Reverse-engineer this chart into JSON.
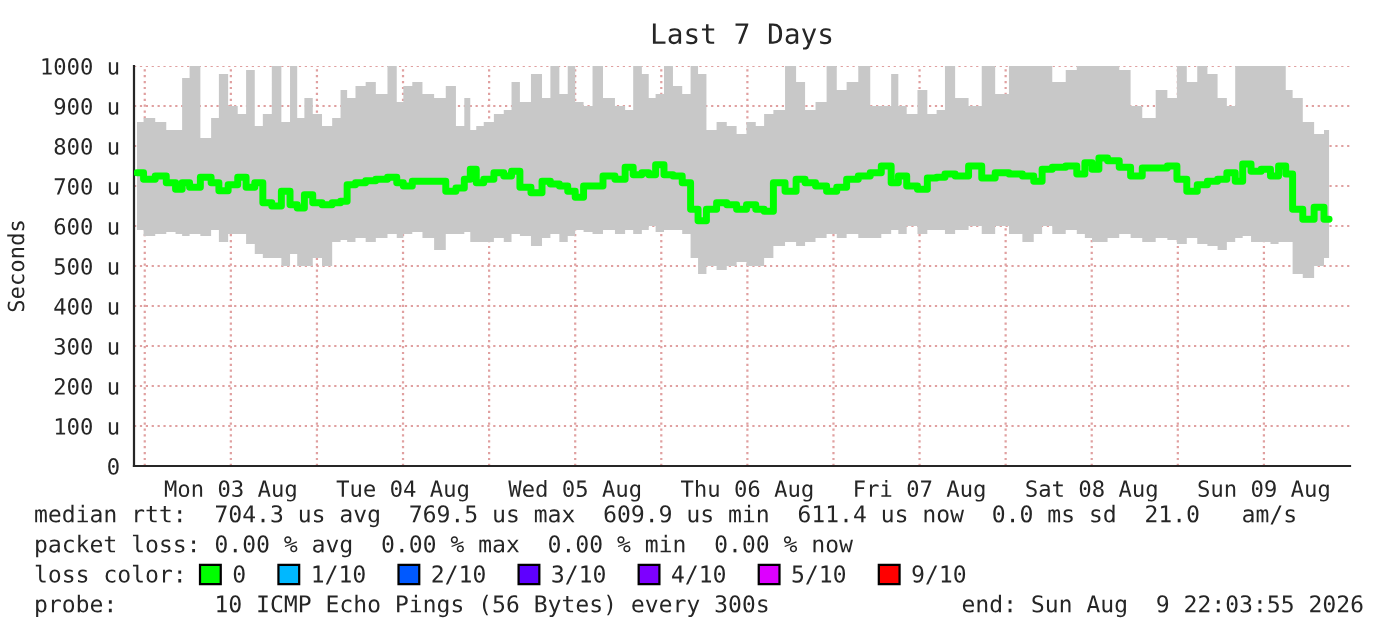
{
  "chart_data": {
    "type": "step",
    "title": "Last 7 Days",
    "ylabel": "Seconds",
    "legend_title": "loss color:",
    "x": [
      "2026-08-02T22:55",
      "2026-08-03T00:45",
      "2026-08-03T02:10",
      "2026-08-03T03:50",
      "2026-08-03T04:45",
      "2026-08-03T05:40",
      "2026-08-03T06:50",
      "2026-08-03T08:40",
      "2026-08-03T09:50",
      "2026-08-03T10:50",
      "2026-08-03T12:25",
      "2026-08-03T13:30",
      "2026-08-03T14:45",
      "2026-08-03T15:55",
      "2026-08-03T17:00",
      "2026-08-03T18:25",
      "2026-08-03T19:40",
      "2026-08-03T20:50",
      "2026-08-03T21:40",
      "2026-08-03T22:50",
      "2026-08-04T00:00",
      "2026-08-04T01:25",
      "2026-08-04T02:50",
      "2026-08-04T03:45",
      "2026-08-04T04:40",
      "2026-08-04T06:05",
      "2026-08-04T07:30",
      "2026-08-04T08:55",
      "2026-08-04T10:45",
      "2026-08-04T11:30",
      "2026-08-04T12:35",
      "2026-08-04T14:00",
      "2026-08-04T15:25",
      "2026-08-04T17:15",
      "2026-08-04T18:40",
      "2026-08-04T20:05",
      "2026-08-04T21:00",
      "2026-08-04T21:45",
      "2026-08-04T22:40",
      "2026-08-04T23:50",
      "2026-08-05T01:30",
      "2026-08-05T02:35",
      "2026-08-05T03:40",
      "2026-08-05T04:55",
      "2026-08-05T06:45",
      "2026-08-05T08:00",
      "2026-08-05T09:05",
      "2026-08-05T10:30",
      "2026-08-05T11:25",
      "2026-08-05T12:35",
      "2026-08-05T13:45",
      "2026-08-05T15:05",
      "2026-08-05T16:40",
      "2026-08-05T18:25",
      "2026-08-05T19:30",
      "2026-08-05T20:40",
      "2026-08-05T21:55",
      "2026-08-05T22:35",
      "2026-08-05T23:50",
      "2026-08-06T00:55",
      "2026-08-06T02:20",
      "2026-08-06T03:30",
      "2026-08-06T04:40",
      "2026-08-06T05:35",
      "2026-08-06T07:00",
      "2026-08-06T08:25",
      "2026-08-06T09:50",
      "2026-08-06T11:10",
      "2026-08-06T12:35",
      "2026-08-06T13:45",
      "2026-08-06T14:55",
      "2026-08-06T16:20",
      "2026-08-06T18:10",
      "2026-08-06T19:25",
      "2026-08-06T20:40",
      "2026-08-06T22:20",
      "2026-08-06T23:45",
      "2026-08-07T01:10",
      "2026-08-07T02:30",
      "2026-08-07T04:25",
      "2026-08-07T05:50",
      "2026-08-07T07:30",
      "2026-08-07T08:35",
      "2026-08-07T09:30",
      "2026-08-07T10:55",
      "2026-08-07T12:30",
      "2026-08-07T13:40",
      "2026-08-07T15:05",
      "2026-08-07T16:00",
      "2026-08-07T17:55",
      "2026-08-07T19:45",
      "2026-08-07T21:35",
      "2026-08-07T23:30",
      "2026-08-08T01:25",
      "2026-08-08T03:15",
      "2026-08-08T04:35",
      "2026-08-08T05:35",
      "2026-08-08T07:25",
      "2026-08-08T09:20",
      "2026-08-08T10:30",
      "2026-08-08T11:35",
      "2026-08-08T12:30",
      "2026-08-08T13:30",
      "2026-08-08T14:55",
      "2026-08-08T16:45",
      "2026-08-08T18:05",
      "2026-08-08T20:00",
      "2026-08-08T21:50",
      "2026-08-08T23:15",
      "2026-08-09T00:30",
      "2026-08-09T02:00",
      "2026-08-09T03:25",
      "2026-08-09T04:50",
      "2026-08-09T06:15",
      "2026-08-09T07:25",
      "2026-08-09T08:35",
      "2026-08-09T09:30",
      "2026-08-09T10:55",
      "2026-08-09T12:20",
      "2026-08-09T13:30",
      "2026-08-09T14:35",
      "2026-08-09T15:30",
      "2026-08-09T16:30",
      "2026-08-09T18:20",
      "2026-08-09T19:40",
      "2026-08-09T21:05"
    ],
    "series": [
      {
        "name": "0",
        "color": "#00ff00",
        "values": [
          733,
          717,
          725,
          708,
          692,
          708,
          697,
          722,
          708,
          688,
          703,
          722,
          697,
          708,
          658,
          650,
          687,
          653,
          645,
          678,
          658,
          653,
          658,
          662,
          703,
          708,
          713,
          717,
          722,
          708,
          700,
          712,
          712,
          712,
          687,
          695,
          717,
          742,
          708,
          717,
          733,
          725,
          737,
          697,
          683,
          712,
          705,
          700,
          687,
          672,
          700,
          700,
          725,
          717,
          747,
          728,
          733,
          728,
          753,
          728,
          725,
          708,
          642,
          613,
          642,
          658,
          653,
          642,
          653,
          642,
          637,
          708,
          687,
          717,
          708,
          700,
          687,
          697,
          717,
          725,
          733,
          750,
          708,
          725,
          700,
          692,
          720,
          722,
          730,
          725,
          750,
          720,
          733,
          730,
          725,
          712,
          742,
          747,
          750,
          730,
          758,
          742,
          770,
          763,
          747,
          725,
          745,
          745,
          750,
          717,
          687,
          703,
          712,
          717,
          733,
          712,
          755,
          737,
          742,
          725,
          750,
          730,
          642,
          617,
          647,
          617
        ],
        "lower": [
          590,
          575,
          580,
          585,
          580,
          575,
          580,
          575,
          590,
          560,
          580,
          580,
          555,
          530,
          520,
          520,
          500,
          530,
          500,
          500,
          520,
          500,
          560,
          565,
          560,
          570,
          560,
          570,
          580,
          570,
          580,
          585,
          570,
          540,
          580,
          580,
          585,
          560,
          560,
          560,
          570,
          560,
          580,
          575,
          550,
          570,
          580,
          560,
          575,
          590,
          585,
          580,
          590,
          580,
          590,
          580,
          590,
          600,
          585,
          590,
          590,
          580,
          520,
          480,
          500,
          490,
          500,
          510,
          500,
          500,
          520,
          550,
          560,
          550,
          560,
          570,
          580,
          570,
          580,
          570,
          570,
          580,
          590,
          580,
          600,
          580,
          590,
          590,
          580,
          590,
          600,
          580,
          600,
          580,
          560,
          580,
          600,
          580,
          590,
          580,
          570,
          560,
          560,
          570,
          580,
          570,
          560,
          570,
          565,
          555,
          570,
          555,
          550,
          540,
          560,
          570,
          575,
          560,
          560,
          555,
          560,
          560,
          480,
          470,
          500,
          520
        ],
        "upper": [
          860,
          870,
          860,
          840,
          840,
          970,
          1000,
          820,
          870,
          980,
          900,
          880,
          990,
          850,
          880,
          1000,
          860,
          1000,
          870,
          920,
          880,
          850,
          870,
          940,
          920,
          950,
          960,
          930,
          1000,
          910,
          950,
          960,
          930,
          920,
          950,
          850,
          920,
          840,
          850,
          860,
          880,
          890,
          960,
          910,
          980,
          920,
          1000,
          930,
          1000,
          910,
          900,
          1000,
          920,
          900,
          890,
          1000,
          980,
          920,
          930,
          1000,
          950,
          930,
          1000,
          980,
          840,
          860,
          850,
          830,
          860,
          850,
          880,
          890,
          1000,
          960,
          890,
          910,
          1000,
          940,
          960,
          1000,
          900,
          900,
          980,
          900,
          880,
          940,
          880,
          890,
          1000,
          920,
          900,
          1000,
          930,
          1000,
          1000,
          1000,
          1000,
          960,
          990,
          1000,
          1000,
          1000,
          1000,
          1000,
          990,
          900,
          870,
          940,
          920,
          1000,
          960,
          1000,
          980,
          920,
          900,
          1000,
          1000,
          1000,
          1000,
          1000,
          1000,
          940,
          920,
          860,
          830,
          840
        ]
      },
      {
        "name": "1/10",
        "color": "#00b8ff",
        "values": [
          null,
          null,
          null,
          null,
          null,
          null,
          null,
          null,
          null,
          null,
          null,
          null,
          null,
          null,
          null,
          null,
          null,
          null,
          null,
          null,
          null,
          null,
          null,
          null,
          null,
          null,
          null,
          null,
          null,
          null,
          null,
          null,
          null,
          null,
          null,
          null,
          null,
          null,
          null,
          null,
          null,
          null,
          null,
          null,
          null,
          null,
          null,
          null,
          null,
          null,
          null,
          null,
          null,
          null,
          null,
          null,
          null,
          null,
          null,
          null,
          null,
          null,
          null,
          null,
          null,
          null,
          null,
          null,
          null,
          null,
          null,
          null,
          null,
          null,
          null,
          null,
          null,
          null,
          null,
          null,
          null,
          null,
          null,
          null,
          null,
          null,
          null,
          null,
          null,
          null,
          null,
          null,
          null,
          null,
          null,
          null,
          null,
          null,
          null,
          null,
          null,
          null,
          null,
          null,
          null,
          null,
          null,
          null,
          null,
          null,
          null,
          null,
          null,
          null,
          null,
          null,
          null,
          null,
          null,
          null,
          null,
          null,
          null,
          null,
          null,
          null
        ]
      },
      {
        "name": "2/10",
        "color": "#0059ff",
        "values": [
          null,
          null,
          null,
          null,
          null,
          null,
          null,
          null,
          null,
          null,
          null,
          null,
          null,
          null,
          null,
          null,
          null,
          null,
          null,
          null,
          null,
          null,
          null,
          null,
          null,
          null,
          null,
          null,
          null,
          null,
          null,
          null,
          null,
          null,
          null,
          null,
          null,
          null,
          null,
          null,
          null,
          null,
          null,
          null,
          null,
          null,
          null,
          null,
          null,
          null,
          null,
          null,
          null,
          null,
          null,
          null,
          null,
          null,
          null,
          null,
          null,
          null,
          null,
          null,
          null,
          null,
          null,
          null,
          null,
          null,
          null,
          null,
          null,
          null,
          null,
          null,
          null,
          null,
          null,
          null,
          null,
          null,
          null,
          null,
          null,
          null,
          null,
          null,
          null,
          null,
          null,
          null,
          null,
          null,
          null,
          null,
          null,
          null,
          null,
          null,
          null,
          null,
          null,
          null,
          null,
          null,
          null,
          null,
          null,
          null,
          null,
          null,
          null,
          null,
          null,
          null,
          null,
          null,
          null,
          null,
          null,
          null,
          null,
          null,
          null,
          null
        ]
      },
      {
        "name": "3/10",
        "color": "#5e00ff",
        "values": [
          null,
          null,
          null,
          null,
          null,
          null,
          null,
          null,
          null,
          null,
          null,
          null,
          null,
          null,
          null,
          null,
          null,
          null,
          null,
          null,
          null,
          null,
          null,
          null,
          null,
          null,
          null,
          null,
          null,
          null,
          null,
          null,
          null,
          null,
          null,
          null,
          null,
          null,
          null,
          null,
          null,
          null,
          null,
          null,
          null,
          null,
          null,
          null,
          null,
          null,
          null,
          null,
          null,
          null,
          null,
          null,
          null,
          null,
          null,
          null,
          null,
          null,
          null,
          null,
          null,
          null,
          null,
          null,
          null,
          null,
          null,
          null,
          null,
          null,
          null,
          null,
          null,
          null,
          null,
          null,
          null,
          null,
          null,
          null,
          null,
          null,
          null,
          null,
          null,
          null,
          null,
          null,
          null,
          null,
          null,
          null,
          null,
          null,
          null,
          null,
          null,
          null,
          null,
          null,
          null,
          null,
          null,
          null,
          null,
          null,
          null,
          null,
          null,
          null,
          null,
          null,
          null,
          null,
          null,
          null,
          null,
          null,
          null,
          null,
          null,
          null
        ]
      },
      {
        "name": "4/10",
        "color": "#7e00ff",
        "values": [
          null,
          null,
          null,
          null,
          null,
          null,
          null,
          null,
          null,
          null,
          null,
          null,
          null,
          null,
          null,
          null,
          null,
          null,
          null,
          null,
          null,
          null,
          null,
          null,
          null,
          null,
          null,
          null,
          null,
          null,
          null,
          null,
          null,
          null,
          null,
          null,
          null,
          null,
          null,
          null,
          null,
          null,
          null,
          null,
          null,
          null,
          null,
          null,
          null,
          null,
          null,
          null,
          null,
          null,
          null,
          null,
          null,
          null,
          null,
          null,
          null,
          null,
          null,
          null,
          null,
          null,
          null,
          null,
          null,
          null,
          null,
          null,
          null,
          null,
          null,
          null,
          null,
          null,
          null,
          null,
          null,
          null,
          null,
          null,
          null,
          null,
          null,
          null,
          null,
          null,
          null,
          null,
          null,
          null,
          null,
          null,
          null,
          null,
          null,
          null,
          null,
          null,
          null,
          null,
          null,
          null,
          null,
          null,
          null,
          null,
          null,
          null,
          null,
          null,
          null,
          null,
          null,
          null,
          null,
          null,
          null,
          null,
          null,
          null,
          null,
          null
        ]
      },
      {
        "name": "5/10",
        "color": "#dd00ff",
        "values": [
          null,
          null,
          null,
          null,
          null,
          null,
          null,
          null,
          null,
          null,
          null,
          null,
          null,
          null,
          null,
          null,
          null,
          null,
          null,
          null,
          null,
          null,
          null,
          null,
          null,
          null,
          null,
          null,
          null,
          null,
          null,
          null,
          null,
          null,
          null,
          null,
          null,
          null,
          null,
          null,
          null,
          null,
          null,
          null,
          null,
          null,
          null,
          null,
          null,
          null,
          null,
          null,
          null,
          null,
          null,
          null,
          null,
          null,
          null,
          null,
          null,
          null,
          null,
          null,
          null,
          null,
          null,
          null,
          null,
          null,
          null,
          null,
          null,
          null,
          null,
          null,
          null,
          null,
          null,
          null,
          null,
          null,
          null,
          null,
          null,
          null,
          null,
          null,
          null,
          null,
          null,
          null,
          null,
          null,
          null,
          null,
          null,
          null,
          null,
          null,
          null,
          null,
          null,
          null,
          null,
          null,
          null,
          null,
          null,
          null,
          null,
          null,
          null,
          null,
          null,
          null,
          null,
          null,
          null,
          null,
          null,
          null,
          null,
          null,
          null,
          null
        ]
      },
      {
        "name": "9/10",
        "color": "#ff0000",
        "values": [
          null,
          null,
          null,
          null,
          null,
          null,
          null,
          null,
          null,
          null,
          null,
          null,
          null,
          null,
          null,
          null,
          null,
          null,
          null,
          null,
          null,
          null,
          null,
          null,
          null,
          null,
          null,
          null,
          null,
          null,
          null,
          null,
          null,
          null,
          null,
          null,
          null,
          null,
          null,
          null,
          null,
          null,
          null,
          null,
          null,
          null,
          null,
          null,
          null,
          null,
          null,
          null,
          null,
          null,
          null,
          null,
          null,
          null,
          null,
          null,
          null,
          null,
          null,
          null,
          null,
          null,
          null,
          null,
          null,
          null,
          null,
          null,
          null,
          null,
          null,
          null,
          null,
          null,
          null,
          null,
          null,
          null,
          null,
          null,
          null,
          null,
          null,
          null,
          null,
          null,
          null,
          null,
          null,
          null,
          null,
          null,
          null,
          null,
          null,
          null,
          null,
          null,
          null,
          null,
          null,
          null,
          null,
          null,
          null,
          null,
          null,
          null,
          null,
          null,
          null,
          null,
          null,
          null,
          null,
          null,
          null,
          null,
          null,
          null,
          null,
          null
        ]
      }
    ],
    "xlim": [
      "2026-08-02T22:30",
      "2026-08-10T00:00"
    ],
    "xticks": [
      {
        "value": "2026-08-03T00:00",
        "label": null
      },
      {
        "value": "2026-08-03T12:00",
        "label": "Mon 03 Aug"
      },
      {
        "value": "2026-08-04T00:00",
        "label": null
      },
      {
        "value": "2026-08-04T12:00",
        "label": "Tue 04 Aug"
      },
      {
        "value": "2026-08-05T00:00",
        "label": null
      },
      {
        "value": "2026-08-05T12:00",
        "label": "Wed 05 Aug"
      },
      {
        "value": "2026-08-06T00:00",
        "label": null
      },
      {
        "value": "2026-08-06T12:00",
        "label": "Thu 06 Aug"
      },
      {
        "value": "2026-08-07T00:00",
        "label": null
      },
      {
        "value": "2026-08-07T12:00",
        "label": "Fri 07 Aug"
      },
      {
        "value": "2026-08-08T00:00",
        "label": null
      },
      {
        "value": "2026-08-08T12:00",
        "label": "Sat 08 Aug"
      },
      {
        "value": "2026-08-09T00:00",
        "label": null
      },
      {
        "value": "2026-08-09T12:00",
        "label": "Sun 09 Aug"
      }
    ],
    "ylim": [
      0,
      1000
    ],
    "yticks": [
      0,
      {
        "value": 100,
        "label": "100 u"
      },
      {
        "value": 200,
        "label": "200 u"
      },
      {
        "value": 300,
        "label": "300 u"
      },
      {
        "value": 400,
        "label": "400 u"
      },
      {
        "value": 500,
        "label": "500 u"
      },
      {
        "value": 600,
        "label": "600 u"
      },
      {
        "value": 700,
        "label": "700 u"
      },
      {
        "value": 800,
        "label": "800 u"
      },
      {
        "value": 900,
        "label": "900 u"
      },
      {
        "value": 1000,
        "label": "1000 u"
      }
    ],
    "grid": true,
    "legend": "bottom",
    "annotations": [
      "median rtt:  704.3 us avg  769.5 us max  609.9 us min  611.4 us now  0.0 ms sd  21.0   am/s",
      "packet loss: 0.00 % avg  0.00 % max  0.00 % min  0.00 % now",
      "probe:       10 ICMP Echo Pings (56 Bytes) every 300s",
      "end: Sun Aug  9 22:03:55 2026"
    ]
  }
}
